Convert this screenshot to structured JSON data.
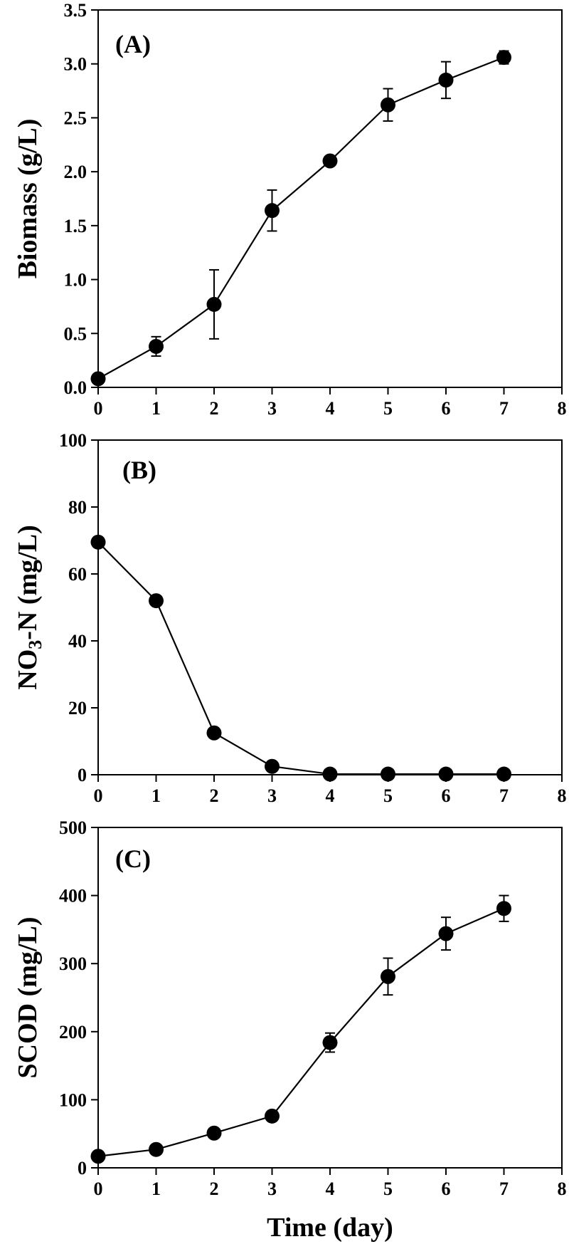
{
  "figure": {
    "xlabel": "Time (day)"
  },
  "chart_data": [
    {
      "type": "line",
      "panel_label": "(A)",
      "ylabel": "Biomass (g/L)",
      "ylabel_sub": "",
      "ylabel_tail": "",
      "xlim": [
        0,
        8
      ],
      "ylim": [
        0,
        3.5
      ],
      "xticks": [
        "0",
        "1",
        "2",
        "3",
        "4",
        "5",
        "6",
        "7",
        "8"
      ],
      "yticks": [
        "0.0",
        "0.5",
        "1.0",
        "1.5",
        "2.0",
        "2.5",
        "3.0",
        "3.5"
      ],
      "grid": false,
      "series": [
        {
          "x": [
            0,
            1,
            2,
            3,
            4,
            5,
            6,
            7
          ],
          "y": [
            0.08,
            0.38,
            0.77,
            1.64,
            2.1,
            2.62,
            2.85,
            3.06
          ],
          "err": [
            0.03,
            0.09,
            0.32,
            0.19,
            0.03,
            0.15,
            0.17,
            0.06
          ]
        }
      ]
    },
    {
      "type": "line",
      "panel_label": "(B)",
      "ylabel": "NO",
      "ylabel_sub": "3",
      "ylabel_tail": "-N (mg/L)",
      "xlim": [
        0,
        8
      ],
      "ylim": [
        0,
        100
      ],
      "xticks": [
        "0",
        "1",
        "2",
        "3",
        "4",
        "5",
        "6",
        "7",
        "8"
      ],
      "yticks": [
        "0",
        "20",
        "40",
        "60",
        "80",
        "100"
      ],
      "grid": false,
      "series": [
        {
          "x": [
            0,
            1,
            2,
            3,
            4,
            5,
            6,
            7
          ],
          "y": [
            69.5,
            52.0,
            12.5,
            2.5,
            0.2,
            0.2,
            0.2,
            0.2
          ],
          "err": [
            1.5,
            1.0,
            1.0,
            0.8,
            0.1,
            0.1,
            0.1,
            0.1
          ]
        }
      ]
    },
    {
      "type": "line",
      "panel_label": "(C)",
      "ylabel": "SCOD (mg/L)",
      "ylabel_sub": "",
      "ylabel_tail": "",
      "xlim": [
        0,
        8
      ],
      "ylim": [
        0,
        500
      ],
      "xticks": [
        "0",
        "1",
        "2",
        "3",
        "4",
        "5",
        "6",
        "7",
        "8"
      ],
      "yticks": [
        "0",
        "100",
        "200",
        "300",
        "400",
        "500"
      ],
      "grid": false,
      "series": [
        {
          "x": [
            0,
            1,
            2,
            3,
            4,
            5,
            6,
            7
          ],
          "y": [
            17,
            27,
            51,
            76,
            184,
            281,
            344,
            381
          ],
          "err": [
            3,
            4,
            4,
            5,
            14,
            27,
            24,
            19
          ]
        }
      ]
    }
  ]
}
